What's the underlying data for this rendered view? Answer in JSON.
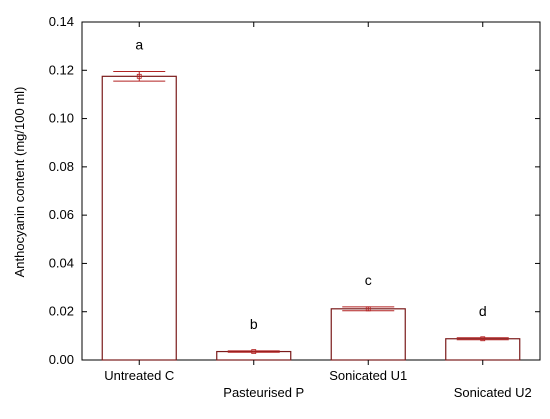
{
  "chart_data": {
    "type": "bar",
    "title": "",
    "xlabel": "",
    "ylabel": "Anthocyanin content (mg/100 ml)",
    "ylim": [
      0,
      0.14
    ],
    "yticks": [
      "0.00",
      "0.02",
      "0.04",
      "0.06",
      "0.08",
      "0.10",
      "0.12",
      "0.14"
    ],
    "categories": [
      "Untreated C",
      "Pasteurised P",
      "Sonicated U1",
      "Sonicated U2"
    ],
    "label_rows": [
      0,
      1,
      0,
      1
    ],
    "values": [
      0.1175,
      0.0035,
      0.0212,
      0.0088
    ],
    "errors": [
      0.002,
      0.0003,
      0.0008,
      0.0004
    ],
    "significance_letters": [
      "a",
      "b",
      "c",
      "d"
    ],
    "grid": false,
    "colors": {
      "bar_outline": "#7a1a1a",
      "bar_fill": "#ffffff",
      "error_bar": "#b22222",
      "axis": "#000000"
    }
  }
}
